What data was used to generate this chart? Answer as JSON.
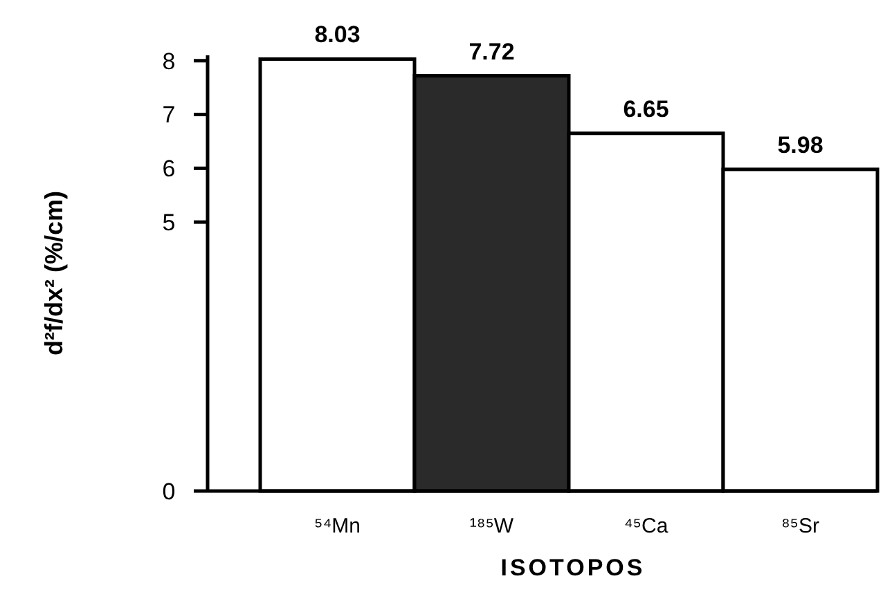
{
  "chart_data": {
    "type": "bar",
    "xlabel": "ISOTOPOS",
    "ylabel": "d²f/dx² (%/cm)",
    "categories": [
      "⁵⁴Mn",
      "¹⁸⁵W",
      "⁴⁵Ca",
      "⁸⁵Sr"
    ],
    "values": [
      8.03,
      7.72,
      6.65,
      5.98
    ],
    "colors": [
      "#ffffff",
      "#2a2a2a",
      "#ffffff",
      "#ffffff"
    ],
    "data_labels": true,
    "ylim": [
      0,
      8.1
    ],
    "yticks": [
      0,
      5,
      6,
      7,
      8
    ]
  }
}
